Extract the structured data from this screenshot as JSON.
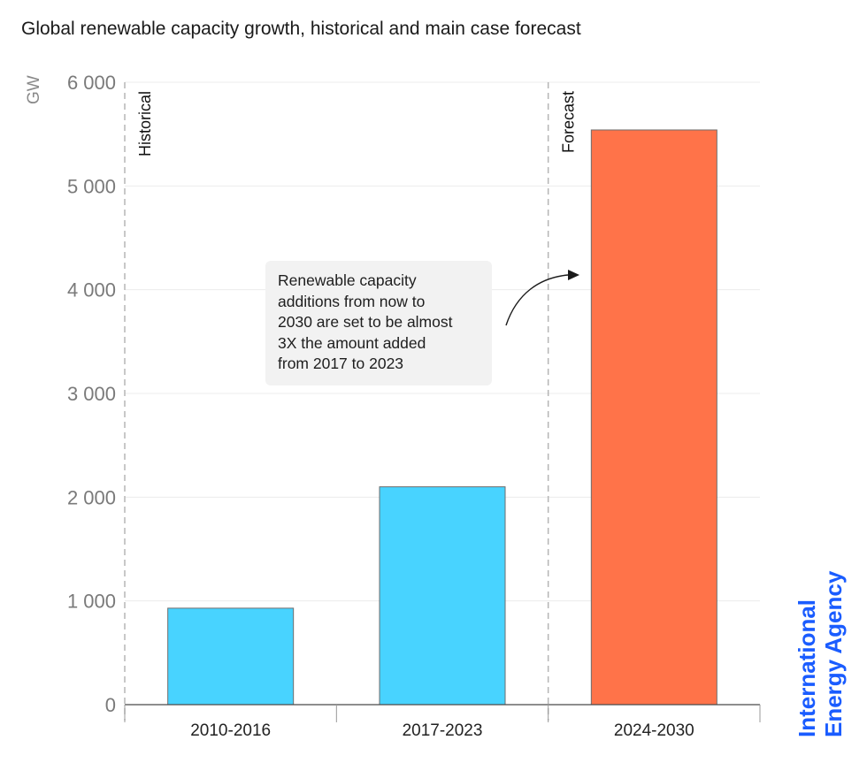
{
  "chart_data": {
    "type": "bar",
    "title": "Global renewable capacity growth, historical and main case forecast",
    "xlabel": "",
    "ylabel": "GW",
    "ylim": [
      0,
      6000
    ],
    "yticks": [
      0,
      1000,
      2000,
      3000,
      4000,
      5000,
      6000
    ],
    "ytick_labels": [
      "0",
      "1 000",
      "2 000",
      "3 000",
      "4 000",
      "5 000",
      "6 000"
    ],
    "grid": true,
    "categories": [
      "2010-2016",
      "2017-2023",
      "2024-2030"
    ],
    "values": [
      930,
      2100,
      5540
    ],
    "bar_colors": [
      "#48d3ff",
      "#48d3ff",
      "#ff7349"
    ],
    "period_labels": [
      {
        "label": "Historical",
        "starts_before_category": 0
      },
      {
        "label": "Forecast",
        "starts_before_category": 2
      }
    ],
    "annotation": {
      "text_lines": [
        "Renewable capacity",
        "additions from now to",
        "2030 are set to be almost",
        "3X the amount added",
        "from 2017 to 2023"
      ],
      "points_to_category": "2024-2030"
    },
    "source_logo": [
      "International",
      "Energy Agency"
    ],
    "legend": "none"
  },
  "colors": {
    "historical": "#48d3ff",
    "forecast": "#ff7349",
    "logo": "#1a5cff",
    "annotation_bg": "#f2f2f2"
  }
}
